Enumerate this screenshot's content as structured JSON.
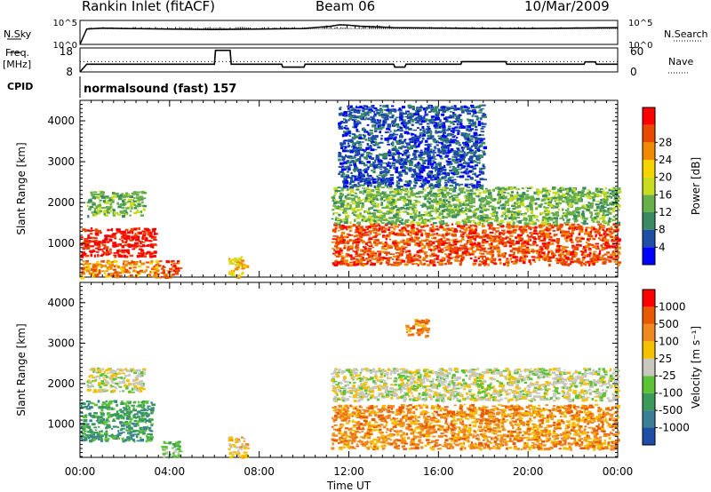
{
  "header": {
    "station": "Rankin Inlet (fitACF)",
    "beam": "Beam 06",
    "date": "10/Mar/2009"
  },
  "side_labels": {
    "nsky": "N.Sky",
    "nsearch": "N.Search",
    "freq": "Freq.",
    "freq_unit": "[MHz]",
    "nave": "Nave",
    "cpid": "CPID",
    "cpid_value": "normalsound (fast) 157"
  },
  "colors": {
    "power_scale": [
      "#0000ff",
      "#1f4ea6",
      "#3a8a63",
      "#6ab04a",
      "#c8dc20",
      "#f5d400",
      "#f08a00",
      "#e84a00",
      "#ff0000"
    ],
    "velocity_scale": [
      "#1f4ea6",
      "#3a7f96",
      "#3a9a5a",
      "#5cc236",
      "#c8c8c0",
      "#f5c000",
      "#f08a20",
      "#e85a00",
      "#ff0000"
    ]
  },
  "chart_data": [
    {
      "type": "line",
      "title": "",
      "xlabel": "",
      "ylabel": "N.Sky",
      "y_ticks_left": [
        "10^5",
        "10^0"
      ],
      "y_ticks_right": [
        "10^5",
        "10^0"
      ],
      "right_label": "N.Search",
      "x_ticks": [
        "00:00",
        "04:00",
        "08:00",
        "12:00",
        "16:00",
        "20:00",
        "00:00"
      ],
      "series": [
        {
          "x": [
            0,
            0.3,
            1,
            2,
            4,
            6,
            8,
            10,
            11.2,
            11.6,
            12,
            12.5,
            13,
            13.5,
            14,
            16,
            18,
            20,
            22,
            24
          ],
          "values": [
            0,
            3.2,
            3.4,
            3.3,
            3.2,
            3.1,
            3.2,
            3.3,
            3.8,
            4.1,
            4.0,
            3.8,
            3.7,
            3.6,
            3.5,
            3.4,
            3.3,
            3.3,
            3.4,
            3.5
          ]
        }
      ]
    },
    {
      "type": "line",
      "title": "",
      "ylabel": "Freq. [MHz]",
      "y_ticks_left": [
        "18",
        "8"
      ],
      "y_ticks_right": [
        "60",
        "0"
      ],
      "right_label": "Nave",
      "ylim": [
        8,
        18
      ],
      "series": [
        {
          "x": [
            0,
            0.3,
            6,
            6.05,
            6.7,
            6.75,
            9,
            9.05,
            10,
            10.05,
            14,
            14.05,
            14.5,
            14.55,
            17,
            17.05,
            19,
            19.05,
            22.5,
            22.55,
            23,
            23.05,
            24
          ],
          "values": [
            8,
            11.2,
            11.2,
            17,
            17,
            11.2,
            11.2,
            10,
            10,
            11.2,
            11.2,
            10,
            10,
            11.2,
            11.2,
            12.3,
            12.3,
            11.2,
            11.2,
            12.2,
            12.2,
            11.2,
            11.2
          ]
        }
      ],
      "dotted_line": 12.3
    },
    {
      "type": "heatmap",
      "title": "",
      "ylabel": "Slant Range [km]",
      "y_ticks": [
        "1000",
        "2000",
        "3000",
        "4000"
      ],
      "ylim": [
        180,
        4500
      ],
      "xlim": [
        0,
        24
      ],
      "colorbar_label": "Power [dB]",
      "colorbar_ticks": [
        "4",
        "8",
        "12",
        "16",
        "20",
        "24",
        "28"
      ],
      "bands": [
        {
          "x0": 0,
          "x1": 3.3,
          "y0": 700,
          "y1": 1400,
          "level": 8
        },
        {
          "x0": 0.3,
          "x1": 2.8,
          "y0": 1700,
          "y1": 2300,
          "level": 3
        },
        {
          "x0": 0,
          "x1": 3.6,
          "y0": 200,
          "y1": 600,
          "level": 6
        },
        {
          "x0": 3.6,
          "x1": 4.4,
          "y0": 200,
          "y1": 600,
          "level": 7
        },
        {
          "x0": 6.6,
          "x1": 7.4,
          "y0": 200,
          "y1": 700,
          "level": 5
        },
        {
          "x0": 11.2,
          "x1": 24,
          "y0": 500,
          "y1": 1500,
          "level": 7
        },
        {
          "x0": 11.2,
          "x1": 24,
          "y0": 1500,
          "y1": 2400,
          "level": 3
        },
        {
          "x0": 11.5,
          "x1": 18,
          "y0": 2400,
          "y1": 4400,
          "level": 1
        }
      ]
    },
    {
      "type": "heatmap",
      "title": "",
      "xlabel": "Time UT",
      "ylabel": "Slant Range [km]",
      "y_ticks": [
        "1000",
        "2000",
        "3000",
        "4000"
      ],
      "x_ticks": [
        "00:00",
        "04:00",
        "08:00",
        "12:00",
        "16:00",
        "20:00",
        "00:00"
      ],
      "ylim": [
        180,
        4500
      ],
      "xlim": [
        0,
        24
      ],
      "colorbar_label": "Velocity [m s⁻¹]",
      "colorbar_ticks": [
        "1000",
        "500",
        "100",
        "25",
        "-25",
        "-100",
        "-500",
        "-1000"
      ],
      "bands": [
        {
          "x0": 0,
          "x1": 3.2,
          "y0": 600,
          "y1": 1600,
          "level": 2
        },
        {
          "x0": 0.3,
          "x1": 2.8,
          "y0": 1800,
          "y1": 2400,
          "level": 4
        },
        {
          "x0": 3.6,
          "x1": 4.4,
          "y0": 200,
          "y1": 600,
          "level": 3
        },
        {
          "x0": 6.6,
          "x1": 7.4,
          "y0": 200,
          "y1": 700,
          "level": 5
        },
        {
          "x0": 11.2,
          "x1": 24,
          "y0": 400,
          "y1": 1500,
          "level": 6
        },
        {
          "x0": 11.2,
          "x1": 24,
          "y0": 1600,
          "y1": 2400,
          "level": 4
        },
        {
          "x0": 14.5,
          "x1": 15.5,
          "y0": 3200,
          "y1": 3600,
          "level": 6
        }
      ]
    }
  ]
}
